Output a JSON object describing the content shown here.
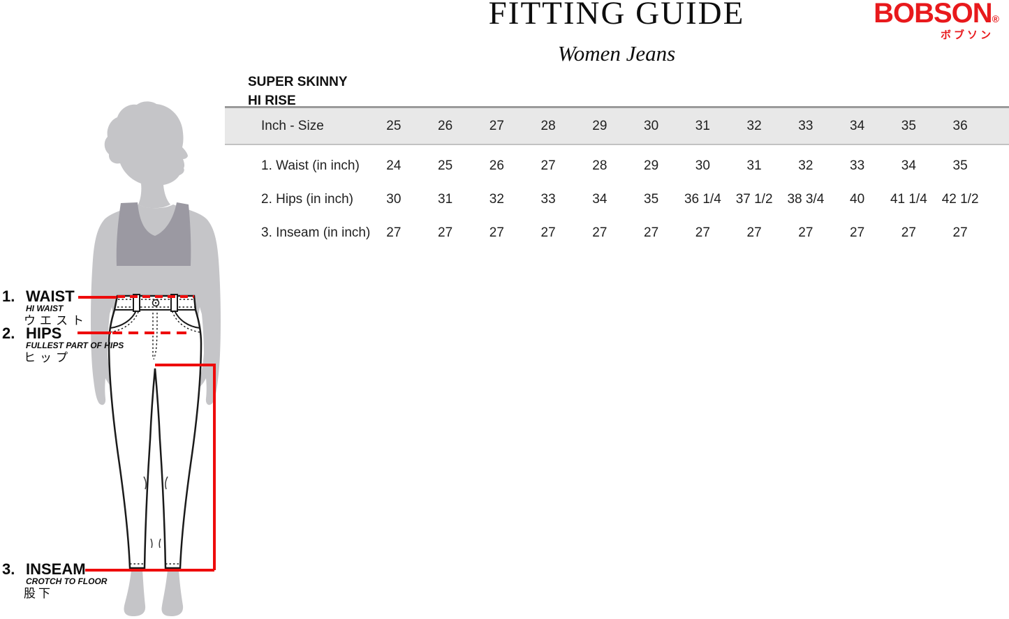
{
  "page": {
    "title": "FITTING GUIDE",
    "subtitle": "Women Jeans"
  },
  "logo": {
    "brand": "BOBSON",
    "registered": "®",
    "katakana": "ボブソン"
  },
  "fit_style": {
    "line1": "SUPER SKINNY",
    "line2": "HI RISE"
  },
  "size_table": {
    "header_label": "Inch - Size",
    "sizes": [
      "25",
      "26",
      "27",
      "28",
      "29",
      "30",
      "31",
      "32",
      "33",
      "34",
      "35",
      "36"
    ],
    "rows": [
      {
        "label": "1. Waist (in inch)",
        "values": [
          "24",
          "25",
          "26",
          "27",
          "28",
          "29",
          "30",
          "31",
          "32",
          "33",
          "34",
          "35"
        ]
      },
      {
        "label": "2. Hips (in inch)",
        "values": [
          "30",
          "31",
          "32",
          "33",
          "34",
          "35",
          "36 1/4",
          "37 1/2",
          "38 3/4",
          "40",
          "41 1/4",
          "42 1/2"
        ]
      },
      {
        "label": "3. Inseam (in inch)",
        "values": [
          "27",
          "27",
          "27",
          "27",
          "27",
          "27",
          "27",
          "27",
          "27",
          "27",
          "27",
          "27"
        ]
      }
    ]
  },
  "measurements": [
    {
      "num": "1.",
      "name": "WAIST",
      "desc": "HI WAIST",
      "jp": "ウエスト"
    },
    {
      "num": "2.",
      "name": "HIPS",
      "desc": "FULLEST PART OF HIPS",
      "jp": "ヒップ"
    },
    {
      "num": "3.",
      "name": "INSEAM",
      "desc": "CROTCH TO FLOOR",
      "jp": "股下"
    }
  ],
  "colors": {
    "accent_red": "#ee0c0c",
    "logo_red": "#e8191c",
    "body_gray": "#c5c5c8",
    "bra_gray": "#9b99a2",
    "table_header_bg": "#e8e8e8"
  }
}
